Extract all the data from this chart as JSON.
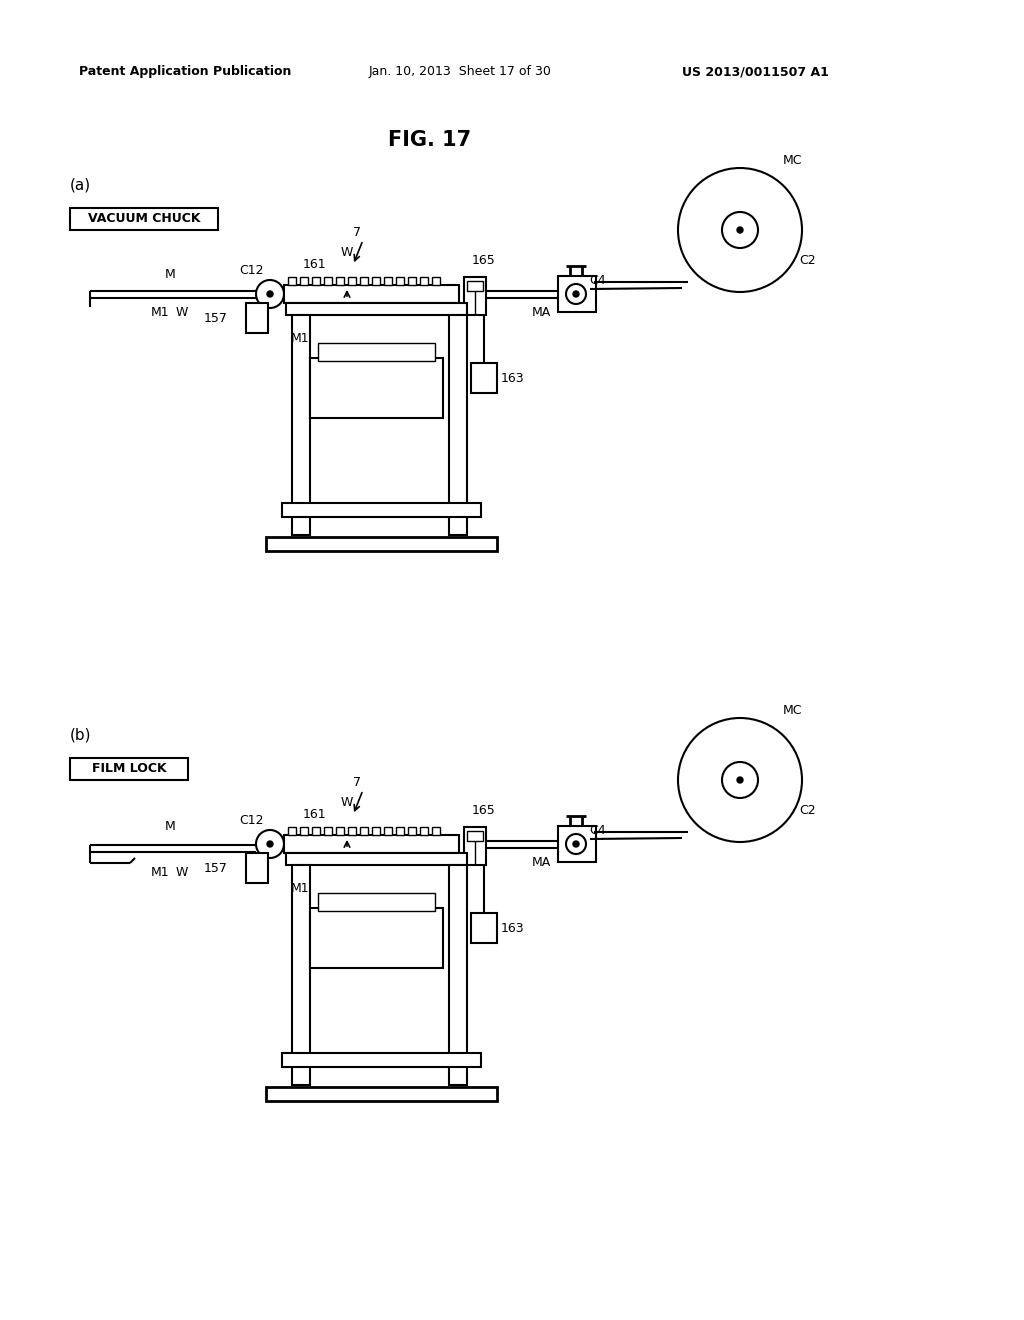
{
  "background_color": "#ffffff",
  "header_text": "Patent Application Publication",
  "header_date": "Jan. 10, 2013  Sheet 17 of 30",
  "header_patent": "US 2013/0011507 A1",
  "figure_title": "FIG. 17",
  "sub_a_label": "(a)",
  "sub_b_label": "(b)",
  "box_a_text": "VACUUM CHUCK",
  "box_b_text": "FILM LOCK",
  "line_color": "#000000",
  "text_color": "#000000",
  "fig_width": 10.24,
  "fig_height": 13.2
}
